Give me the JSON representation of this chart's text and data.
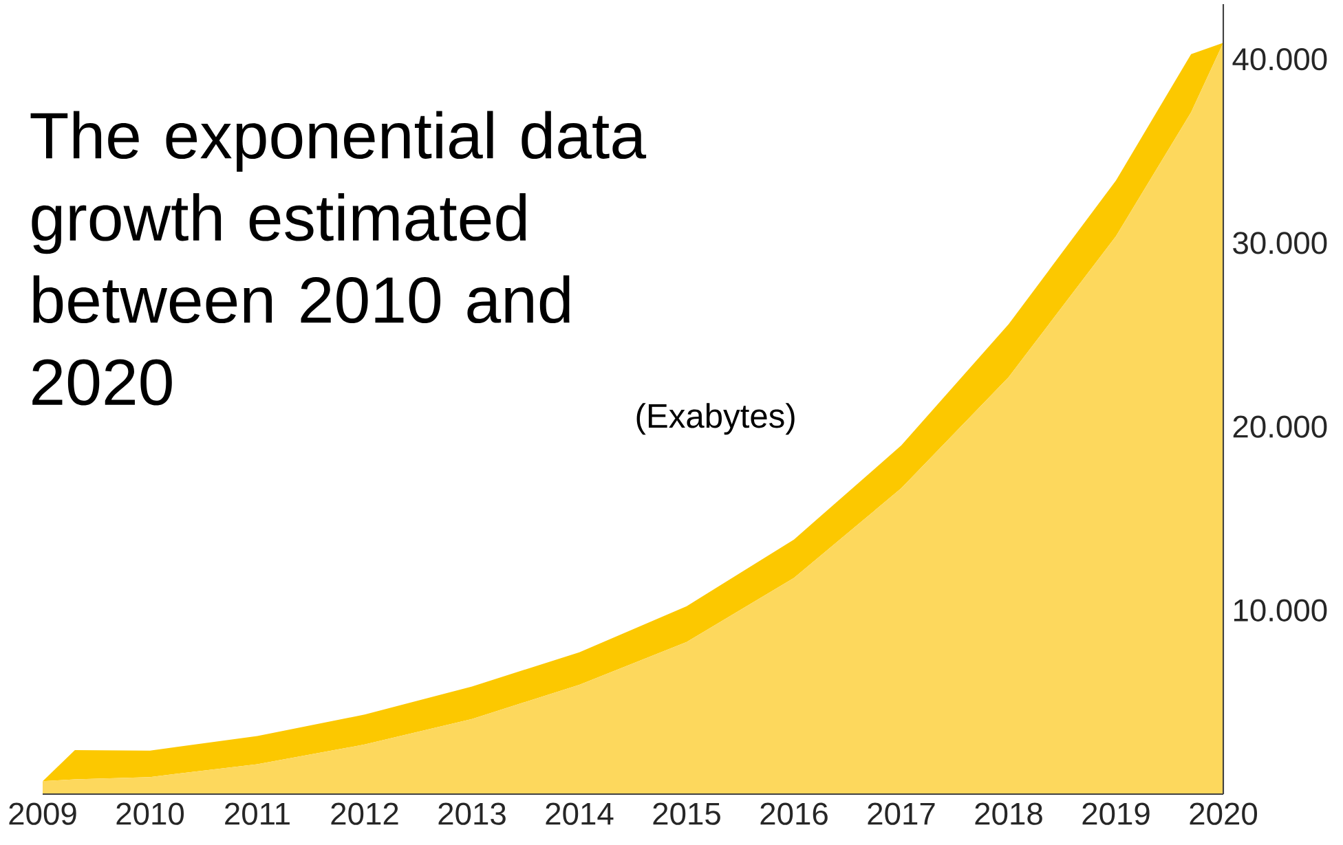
{
  "chart_data": {
    "type": "area",
    "stacked": true,
    "title": "The exponential data growth estimated between 2010 and 2020",
    "ylabel": "(Exabytes)",
    "x": [
      2009,
      2009.3,
      2010,
      2011,
      2012,
      2013,
      2014,
      2015,
      2016,
      2017,
      2018,
      2019,
      2019.7,
      2020
    ],
    "series": [
      {
        "color": "#fdd85d",
        "values": [
          700,
          800,
          930,
          1630,
          2700,
          4090,
          5950,
          8280,
          11770,
          16650,
          22700,
          30370,
          37120,
          40900
        ]
      },
      {
        "color": "#fcc800",
        "values": [
          0,
          1600,
          1440,
          1530,
          1630,
          1770,
          1770,
          1950,
          2090,
          2330,
          2880,
          3030,
          3160,
          0
        ]
      }
    ],
    "xlim": [
      2009,
      2020
    ],
    "xticks": [
      2009,
      2010,
      2011,
      2012,
      2013,
      2014,
      2015,
      2016,
      2017,
      2018,
      2019,
      2020
    ],
    "ylim": [
      0,
      43000
    ],
    "yticks": [
      {
        "value": 10000,
        "label": "10.000"
      },
      {
        "value": 20000,
        "label": "20.000"
      },
      {
        "value": 30000,
        "label": "30.000"
      },
      {
        "value": 40000,
        "label": "40.000"
      }
    ]
  }
}
